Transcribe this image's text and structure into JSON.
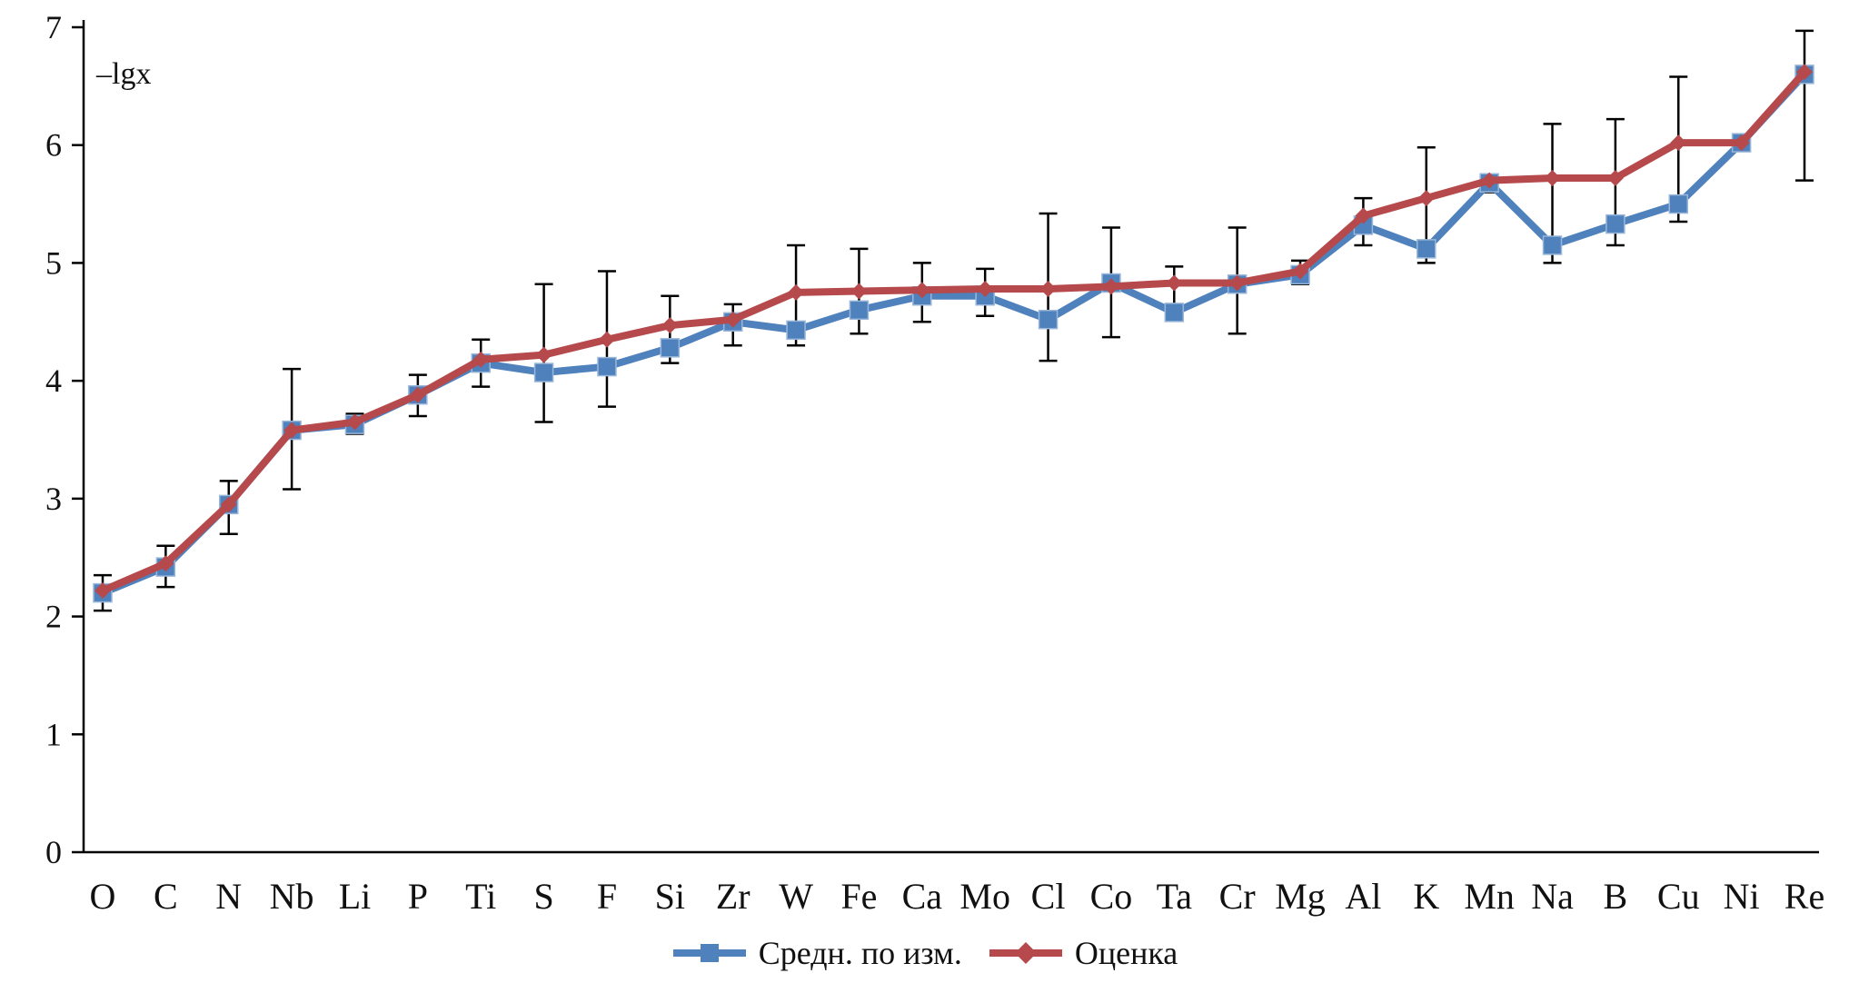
{
  "chart_data": {
    "type": "line",
    "title": "",
    "xlabel": "",
    "ylabel": "–lgx",
    "ylim": [
      0,
      7
    ],
    "yticks": [
      0,
      1,
      2,
      3,
      4,
      5,
      6,
      7
    ],
    "grid": false,
    "legend_position": "bottom",
    "categories": [
      "O",
      "C",
      "N",
      "Nb",
      "Li",
      "P",
      "Ti",
      "S",
      "F",
      "Si",
      "Zr",
      "W",
      "Fe",
      "Ca",
      "Mo",
      "Cl",
      "Co",
      "Ta",
      "Cr",
      "Mg",
      "Al",
      "K",
      "Mn",
      "Na",
      "B",
      "Cu",
      "Ni",
      "Re"
    ],
    "series": [
      {
        "name": "Средн. по изм.",
        "color": "#4f81bd",
        "marker": "square",
        "values": [
          2.2,
          2.42,
          2.95,
          3.58,
          3.63,
          3.88,
          4.15,
          4.07,
          4.12,
          4.28,
          4.5,
          4.43,
          4.6,
          4.72,
          4.72,
          4.52,
          4.83,
          4.58,
          4.82,
          4.9,
          5.32,
          5.12,
          5.68,
          5.15,
          5.33,
          5.5,
          6.02,
          6.6
        ]
      },
      {
        "name": "Оценка",
        "color": "#b5494b",
        "marker": "diamond",
        "values": [
          2.22,
          2.45,
          2.95,
          3.58,
          3.65,
          3.88,
          4.18,
          4.22,
          4.35,
          4.47,
          4.52,
          4.75,
          4.76,
          4.77,
          4.78,
          4.78,
          4.8,
          4.83,
          4.83,
          4.93,
          5.4,
          5.55,
          5.7,
          5.72,
          5.72,
          6.02,
          6.02,
          6.62
        ]
      }
    ],
    "error_bars": {
      "color": "#000000",
      "low": [
        2.05,
        2.25,
        2.7,
        3.08,
        3.55,
        3.7,
        3.95,
        3.65,
        3.78,
        4.15,
        4.3,
        4.3,
        4.4,
        4.5,
        4.55,
        4.17,
        4.37,
        4.6,
        4.4,
        4.82,
        5.15,
        5.0,
        5.6,
        5.0,
        5.15,
        5.35,
        5.95,
        5.7
      ],
      "high": [
        2.35,
        2.6,
        3.15,
        4.1,
        3.72,
        4.05,
        4.35,
        4.82,
        4.93,
        4.72,
        4.65,
        5.15,
        5.12,
        5.0,
        4.95,
        5.42,
        5.3,
        4.97,
        5.3,
        5.02,
        5.55,
        5.98,
        5.75,
        6.18,
        6.22,
        6.58,
        6.08,
        6.97
      ]
    }
  }
}
